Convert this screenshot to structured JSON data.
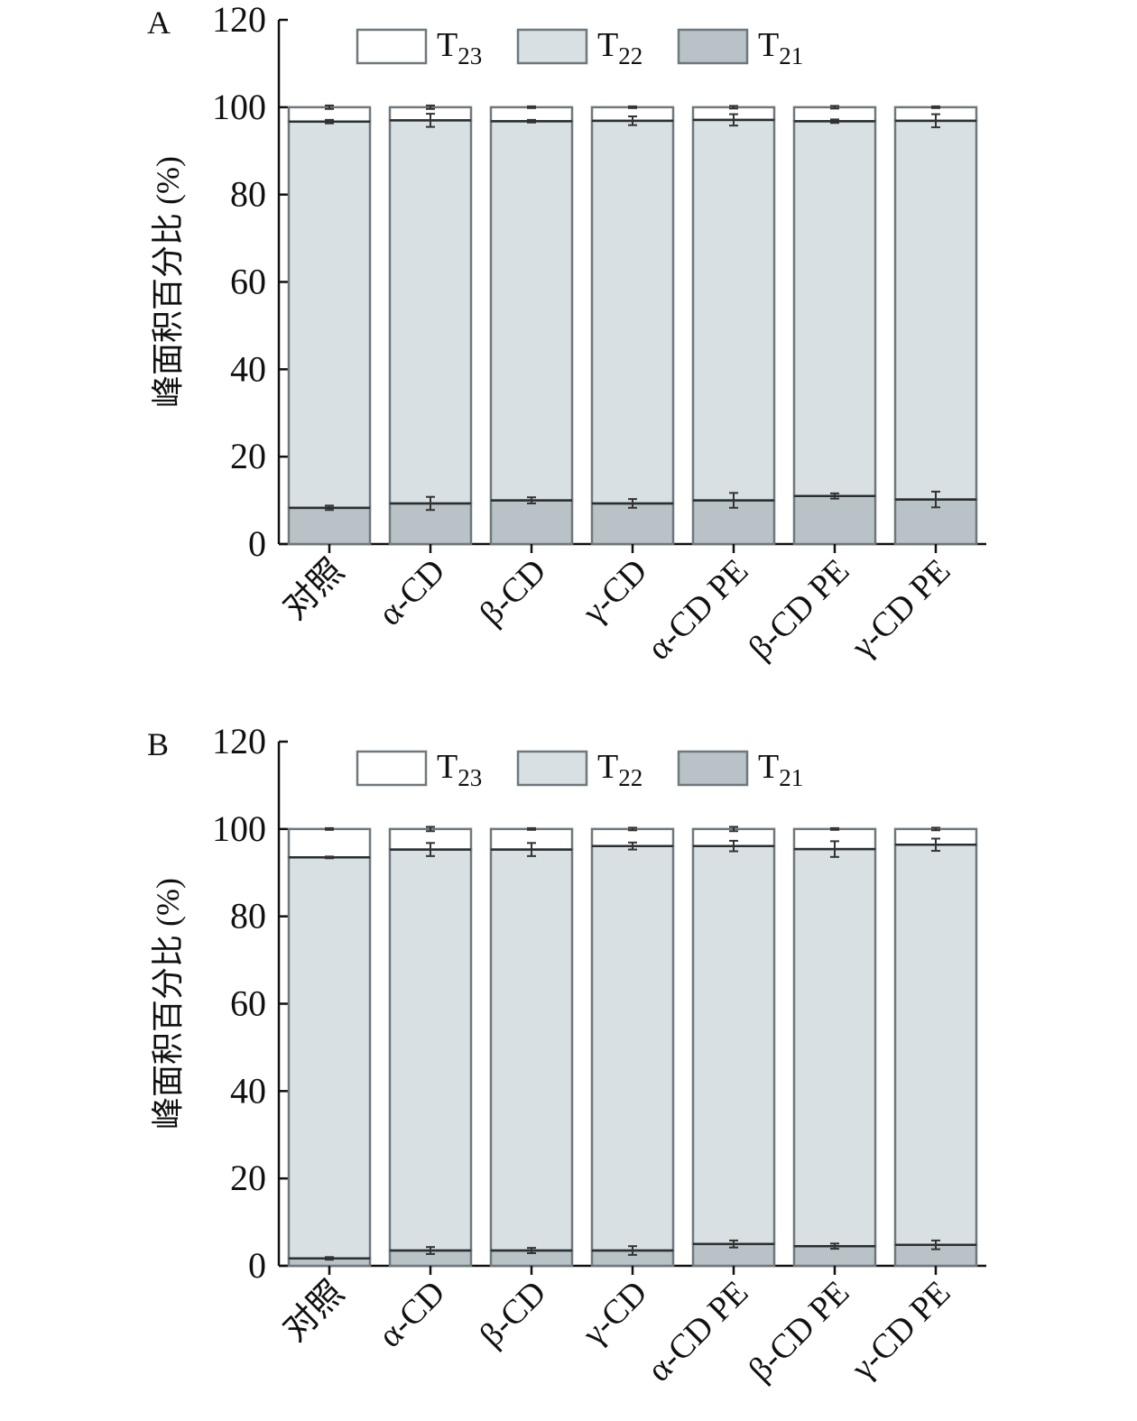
{
  "chart_data": [
    {
      "type": "bar",
      "stacked": true,
      "panel": "A",
      "ylabel": "峰面积百分比 (%)",
      "xlabel": "",
      "ylim": [
        0,
        120
      ],
      "yticks": [
        "0",
        "20",
        "40",
        "60",
        "80",
        "100",
        "120"
      ],
      "categories": [
        "对照",
        "α-CD",
        "β-CD",
        "γ-CD",
        "α-CD PE",
        "β-CD PE",
        "γ-CD PE"
      ],
      "legend": {
        "placement": "top",
        "entries": [
          {
            "series": "T23",
            "main": "T",
            "sub": "23"
          },
          {
            "series": "T22",
            "main": "T",
            "sub": "22"
          },
          {
            "series": "T21",
            "main": "T",
            "sub": "21"
          }
        ]
      },
      "series": [
        {
          "name": "T21",
          "color": "#b9c2c6",
          "values": [
            8.3,
            9.3,
            10.0,
            9.3,
            10.0,
            11.0,
            10.2
          ],
          "errors": [
            0.5,
            1.5,
            0.7,
            1.0,
            1.7,
            0.6,
            1.8
          ]
        },
        {
          "name": "T22",
          "color": "#d9e0e3",
          "values": [
            88.4,
            87.7,
            86.8,
            87.6,
            87.1,
            85.8,
            86.7
          ],
          "errors": [
            0.4,
            1.5,
            0.3,
            1.0,
            1.3,
            0.4,
            1.5
          ]
        },
        {
          "name": "T23",
          "color": "#ffffff",
          "values": [
            3.3,
            3.0,
            3.2,
            3.1,
            2.9,
            3.2,
            3.1
          ],
          "errors": [
            0.4,
            0.4,
            0.2,
            0.2,
            0.3,
            0.3,
            0.2
          ]
        }
      ]
    },
    {
      "type": "bar",
      "stacked": true,
      "panel": "B",
      "ylabel": "峰面积百分比 (%)",
      "xlabel": "",
      "ylim": [
        0,
        120
      ],
      "yticks": [
        "0",
        "20",
        "40",
        "60",
        "80",
        "100",
        "120"
      ],
      "categories": [
        "对照",
        "α-CD",
        "β-CD",
        "γ-CD",
        "α-CD PE",
        "β-CD PE",
        "γ-CD PE"
      ],
      "legend": {
        "placement": "top",
        "entries": [
          {
            "series": "T23",
            "main": "T",
            "sub": "23"
          },
          {
            "series": "T22",
            "main": "T",
            "sub": "22"
          },
          {
            "series": "T21",
            "main": "T",
            "sub": "21"
          }
        ]
      },
      "series": [
        {
          "name": "T21",
          "color": "#b9c2c6",
          "values": [
            1.7,
            3.5,
            3.5,
            3.5,
            5.0,
            4.5,
            4.8
          ],
          "errors": [
            0.3,
            0.8,
            0.6,
            1.0,
            0.8,
            0.6,
            1.0
          ]
        },
        {
          "name": "T22",
          "color": "#d9e0e3",
          "values": [
            91.8,
            91.8,
            91.8,
            92.6,
            91.1,
            90.9,
            91.6
          ],
          "errors": [
            0.2,
            1.5,
            1.5,
            0.8,
            1.2,
            1.8,
            1.4
          ]
        },
        {
          "name": "T23",
          "color": "#ffffff",
          "values": [
            6.5,
            4.7,
            4.7,
            3.9,
            3.9,
            4.6,
            3.6
          ],
          "errors": [
            0.2,
            0.5,
            0.2,
            0.3,
            0.5,
            0.2,
            0.3
          ]
        }
      ]
    }
  ]
}
